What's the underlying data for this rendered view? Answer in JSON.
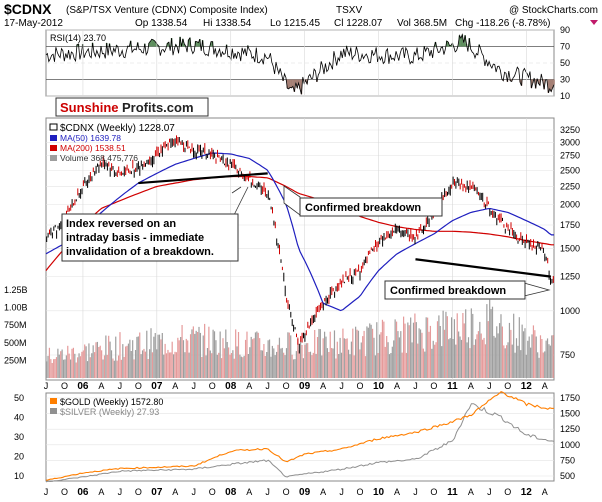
{
  "header": {
    "symbol": "$CDNX",
    "name": "(S&P/TSX Venture (CDNX) Composite Index)",
    "exchange": "TSXV",
    "watermark": "@ StockCharts.com",
    "date": "17-May-2012",
    "open": "Op 1338.54",
    "high": "Hi 1338.54",
    "low": "Lo 1215.45",
    "close": "Cl 1228.07",
    "volume": "Vol 368.5M",
    "change": "Chg -118.26 (-8.78%)"
  },
  "logo": {
    "part1": "Sunshine",
    "part2": "Profits.com"
  },
  "colors": {
    "cdnx_price": "#000000",
    "ma50": "#1f1fbf",
    "ma200": "#d00000",
    "volume_up": "#9e9e9e",
    "volume_down": "#e59a9a",
    "gold": "#ff7f00",
    "silver": "#909090",
    "rsi_overbought_fill": "#5f8f5f",
    "rsi_oversold_fill": "#a47f74"
  },
  "rsi_panel": {
    "label": "RSI(14) 23.70",
    "ticks": [
      "90",
      "70",
      "50",
      "30",
      "10"
    ]
  },
  "main_panel": {
    "legend": {
      "cdnx": "$CDNX (Weekly) 1228.07",
      "ma50": "MA(50) 1639.78",
      "ma200": "MA(200) 1538.51",
      "volume": "Volume 368,475,776"
    },
    "right_ticks": [
      "3250",
      "3000",
      "2750",
      "2500",
      "2250",
      "2000",
      "1750",
      "1500",
      "1250",
      "1000",
      "750"
    ],
    "volume_ticks": [
      "1.25B",
      "1.00B",
      "750M",
      "500M",
      "250M"
    ],
    "annotations": {
      "reversal": [
        "Index reversed on an",
        "intraday basis - immediate",
        "invalidation of a breakdown."
      ],
      "breakdown1": "Confirmed breakdown",
      "breakdown2": "Confirmed breakdown"
    }
  },
  "metals_panel": {
    "gold_legend": "$GOLD (Weekly) 1572.80",
    "silver_legend": "$SILVER (Weekly) 27.93",
    "left_ticks": [
      "50",
      "40",
      "30",
      "20",
      "10"
    ],
    "right_ticks": [
      "1750",
      "1500",
      "1250",
      "1000",
      "750",
      "500"
    ]
  },
  "x_axis": {
    "labels": [
      "J",
      "O",
      "06",
      "A",
      "J",
      "O",
      "07",
      "A",
      "J",
      "O",
      "08",
      "A",
      "J",
      "O",
      "09",
      "A",
      "J",
      "O",
      "10",
      "A",
      "J",
      "O",
      "11",
      "A",
      "J",
      "O",
      "12",
      "A"
    ]
  },
  "chart_data": [
    {
      "type": "line",
      "title": "RSI(14)",
      "x": [
        "2005-07",
        "2006-07",
        "2007-07",
        "2008-07",
        "2008-11",
        "2009-07",
        "2010-07",
        "2011-03",
        "2011-09",
        "2012-05"
      ],
      "series": [
        {
          "name": "RSI(14)",
          "values": [
            60,
            66,
            72,
            58,
            12,
            62,
            58,
            76,
            40,
            23.7
          ]
        }
      ],
      "ylim": [
        10,
        90
      ]
    },
    {
      "type": "line",
      "title": "$CDNX (S&P/TSX Venture (CDNX) Composite Index) Weekly",
      "x": [
        "2005-07",
        "2005-10",
        "2006-01",
        "2006-04",
        "2006-07",
        "2006-10",
        "2007-01",
        "2007-04",
        "2007-07",
        "2007-10",
        "2008-01",
        "2008-04",
        "2008-07",
        "2008-10",
        "2008-12",
        "2009-04",
        "2009-07",
        "2009-10",
        "2010-01",
        "2010-04",
        "2010-07",
        "2010-10",
        "2011-01",
        "2011-04",
        "2011-07",
        "2011-10",
        "2012-01",
        "2012-04",
        "2012-05"
      ],
      "series": [
        {
          "name": "$CDNX (Weekly)",
          "values": [
            1600,
            1800,
            2250,
            2650,
            2450,
            2550,
            2800,
            3050,
            2850,
            2750,
            2600,
            2350,
            2150,
            1100,
            800,
            1050,
            1200,
            1300,
            1550,
            1700,
            1600,
            1900,
            2300,
            2250,
            1950,
            1700,
            1550,
            1480,
            1228
          ]
        },
        {
          "name": "MA(50)",
          "values": [
            1450,
            1550,
            1700,
            1900,
            2100,
            2300,
            2450,
            2600,
            2700,
            2800,
            2780,
            2700,
            2500,
            2000,
            1500,
            1050,
            1000,
            1100,
            1300,
            1450,
            1550,
            1650,
            1800,
            1900,
            1950,
            1900,
            1800,
            1700,
            1640
          ]
        },
        {
          "name": "MA(200)",
          "values": [
            1300,
            1500,
            1750,
            1950,
            2050,
            2150,
            2250,
            2300,
            2350,
            2380,
            2400,
            2400,
            2380,
            2250,
            2150,
            2050,
            1950,
            1850,
            1780,
            1730,
            1700,
            1680,
            1680,
            1670,
            1650,
            1620,
            1580,
            1550,
            1538
          ]
        }
      ],
      "trendlines": [
        {
          "from": [
            "2006-10",
            2300
          ],
          "to": [
            "2008-07",
            2450
          ]
        },
        {
          "from": [
            "2010-07",
            1400
          ],
          "to": [
            "2012-05",
            1250
          ]
        }
      ],
      "ylim": [
        750,
        3250
      ]
    },
    {
      "type": "bar",
      "title": "Volume",
      "x": [
        "2005",
        "2006",
        "2007",
        "2008",
        "2009",
        "2010",
        "2011",
        "2012"
      ],
      "values": [
        300000000,
        450000000,
        550000000,
        450000000,
        500000000,
        650000000,
        800000000,
        368475776
      ],
      "ylim": [
        0,
        1250000000
      ]
    },
    {
      "type": "line",
      "title": "$GOLD / $SILVER (Weekly)",
      "x": [
        "2005-07",
        "2006-01",
        "2006-07",
        "2007-01",
        "2007-07",
        "2008-01",
        "2008-07",
        "2008-10",
        "2009-01",
        "2009-07",
        "2010-01",
        "2010-07",
        "2011-01",
        "2011-04",
        "2011-09",
        "2012-01",
        "2012-05"
      ],
      "series": [
        {
          "name": "$GOLD (Weekly)",
          "values": [
            430,
            550,
            620,
            640,
            660,
            900,
            940,
            720,
            850,
            930,
            1100,
            1200,
            1370,
            1480,
            1850,
            1650,
            1572.8
          ]
        },
        {
          "name": "$SILVER (Weekly)",
          "values": [
            7.0,
            9.5,
            12.5,
            13.0,
            13.5,
            16.0,
            18.0,
            9.5,
            11.0,
            13.5,
            17.0,
            18.5,
            28.0,
            47.0,
            40.0,
            31.0,
            27.93
          ]
        }
      ],
      "ylim_left": [
        10,
        50
      ],
      "ylim_right": [
        500,
        1750
      ]
    }
  ]
}
